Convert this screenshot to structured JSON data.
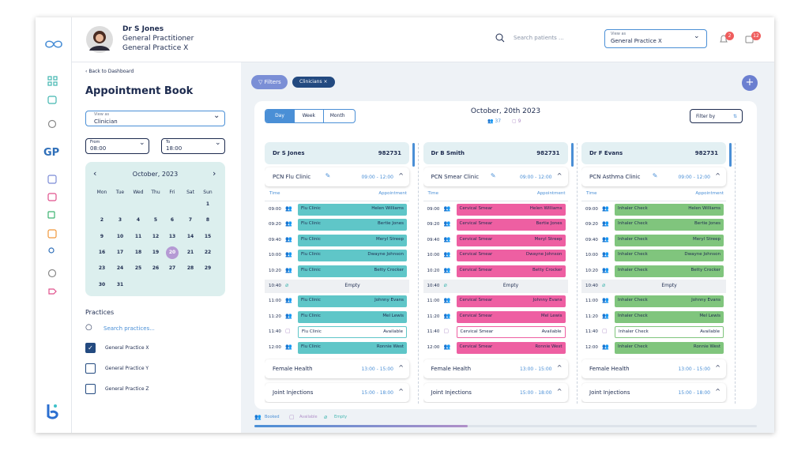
{
  "header": {
    "name": "Dr S Jones",
    "role": "General Practitioner",
    "practice": "General Practice X",
    "search": "Search patients ...",
    "view_as_label": "View as",
    "view_as_value": "General Practice X",
    "notifications": "2",
    "messages": "12"
  },
  "sidebar": {
    "logo_text": "GP"
  },
  "left": {
    "back": "Back to Dashboard",
    "title": "Appointment Book",
    "view_as_label": "View as",
    "view_as_value": "Clinician",
    "from_label": "From",
    "from_value": "08:00",
    "to_label": "To",
    "to_value": "18:00",
    "calendar": {
      "month": "October, 2023",
      "weekdays": [
        "Mon",
        "Tue",
        "Wed",
        "Thu",
        "Fri",
        "Sat",
        "Sun"
      ],
      "selected": 20,
      "weeks": [
        [
          null,
          null,
          null,
          null,
          null,
          null,
          1
        ],
        [
          2,
          3,
          4,
          5,
          6,
          7,
          8
        ],
        [
          9,
          10,
          11,
          12,
          13,
          14,
          15
        ],
        [
          16,
          17,
          18,
          19,
          20,
          21,
          22
        ],
        [
          23,
          24,
          25,
          26,
          27,
          28,
          29
        ],
        [
          30,
          31,
          null,
          null,
          null,
          null,
          null
        ]
      ]
    },
    "practices": {
      "title": "Practices",
      "search": "Search practices...",
      "items": [
        {
          "name": "General Practice X",
          "checked": true
        },
        {
          "name": "General Practice Y",
          "checked": false
        },
        {
          "name": "General Practice Z",
          "checked": false
        }
      ]
    }
  },
  "main": {
    "filters": "Filters",
    "chip": "Clinicians",
    "tabs": [
      "Day",
      "Week",
      "Month"
    ],
    "active_tab": 0,
    "date": "October, 20th 2023",
    "booked_count": "37",
    "available_count": "9",
    "filter_by": "Filter by",
    "legend": [
      "Booked",
      "Available",
      "Empty"
    ]
  },
  "board": {
    "time_label": "Time",
    "appointment_label": "Appointment",
    "columns": [
      {
        "name": "Dr S Jones",
        "id": "982731",
        "color": "#5fc6c8",
        "sessions": [
          {
            "name": "PCN Flu Clinic",
            "time": "09:00 - 12:00",
            "slots": [
              {
                "time": "09:00",
                "service": "Flu Clinic",
                "patient": "Helen Williams",
                "status": "booked"
              },
              {
                "time": "09:20",
                "service": "Flu Clinic",
                "patient": "Bertie Jones",
                "status": "booked"
              },
              {
                "time": "09:40",
                "service": "Flu Clinic",
                "patient": "Meryl Streep",
                "status": "booked"
              },
              {
                "time": "10:00",
                "service": "Flu Clinic",
                "patient": "Dwayne Johnson",
                "status": "booked"
              },
              {
                "time": "10:20",
                "service": "Flu Clinic",
                "patient": "Betty Crocker",
                "status": "booked"
              },
              {
                "time": "10:40",
                "service": null,
                "patient": "Empty",
                "status": "empty"
              },
              {
                "time": "11:00",
                "service": "Flu Clinic",
                "patient": "Johnny Evans",
                "status": "booked"
              },
              {
                "time": "11:20",
                "service": "Flu Clinic",
                "patient": "Mel Lewis",
                "status": "booked"
              },
              {
                "time": "11:40",
                "service": "Flu Clinic",
                "patient": "Available",
                "status": "available"
              },
              {
                "time": "12:00",
                "service": "Flu Clinic",
                "patient": "Ronnie West",
                "status": "booked"
              }
            ]
          },
          {
            "name": "Female Health",
            "time": "13:00 - 15:00"
          },
          {
            "name": "Joint Injections",
            "time": "15:00 - 18:00"
          }
        ]
      },
      {
        "name": "Dr B Smith",
        "id": "982731",
        "color": "#ee5fa2",
        "sessions": [
          {
            "name": "PCN Smear Clinic",
            "time": "09:00 - 12:00",
            "slots": [
              {
                "time": "09:00",
                "service": "Cervical Smear",
                "patient": "Helen Williams",
                "status": "booked"
              },
              {
                "time": "09:20",
                "service": "Cervical Smear",
                "patient": "Bertie Jones",
                "status": "booked"
              },
              {
                "time": "09:40",
                "service": "Cervical Smear",
                "patient": "Meryl Streep",
                "status": "booked"
              },
              {
                "time": "10:00",
                "service": "Cervical Smear",
                "patient": "Dwayne Johnson",
                "status": "booked"
              },
              {
                "time": "10:20",
                "service": "Cervical Smear",
                "patient": "Betty Crocker",
                "status": "booked"
              },
              {
                "time": "10:40",
                "service": null,
                "patient": "Empty",
                "status": "empty"
              },
              {
                "time": "11:00",
                "service": "Cervical Smear",
                "patient": "Johnny Evans",
                "status": "booked"
              },
              {
                "time": "11:20",
                "service": "Cervical Smear",
                "patient": "Mel Lewis",
                "status": "booked"
              },
              {
                "time": "11:40",
                "service": "Cervical Smear",
                "patient": "Available",
                "status": "available"
              },
              {
                "time": "12:00",
                "service": "Cervical Smear",
                "patient": "Ronnie West",
                "status": "booked"
              }
            ]
          },
          {
            "name": "Female Health",
            "time": "13:00 - 15:00"
          },
          {
            "name": "Joint Injections",
            "time": "15:00 - 18:00"
          }
        ]
      },
      {
        "name": "Dr F Evans",
        "id": "982731",
        "color": "#80c57d",
        "sessions": [
          {
            "name": "PCN Asthma Clinic",
            "time": "09:00 - 12:00",
            "slots": [
              {
                "time": "09:00",
                "service": "Inhaler Check",
                "patient": "Helen Williams",
                "status": "booked"
              },
              {
                "time": "09:20",
                "service": "Inhaler Check",
                "patient": "Bertie Jones",
                "status": "booked"
              },
              {
                "time": "09:40",
                "service": "Inhaler Check",
                "patient": "Meryl Streep",
                "status": "booked"
              },
              {
                "time": "10:00",
                "service": "Inhaler Check",
                "patient": "Dwayne Johnson",
                "status": "booked"
              },
              {
                "time": "10:20",
                "service": "Inhaler Check",
                "patient": "Betty Crocker",
                "status": "booked"
              },
              {
                "time": "10:40",
                "service": null,
                "patient": "Empty",
                "status": "empty"
              },
              {
                "time": "11:00",
                "service": "Inhaler Check",
                "patient": "Johnny Evans",
                "status": "booked"
              },
              {
                "time": "11:20",
                "service": "Inhaler Check",
                "patient": "Mel Lewis",
                "status": "booked"
              },
              {
                "time": "11:40",
                "service": "Inhaler Check",
                "patient": "Available",
                "status": "available"
              },
              {
                "time": "12:00",
                "service": "Inhaler Check",
                "patient": "Ronnie West",
                "status": "booked"
              }
            ]
          },
          {
            "name": "Female Health",
            "time": "13:00 - 15:00"
          },
          {
            "name": "Joint Injections",
            "time": "15:00 - 18:00"
          }
        ]
      }
    ]
  }
}
